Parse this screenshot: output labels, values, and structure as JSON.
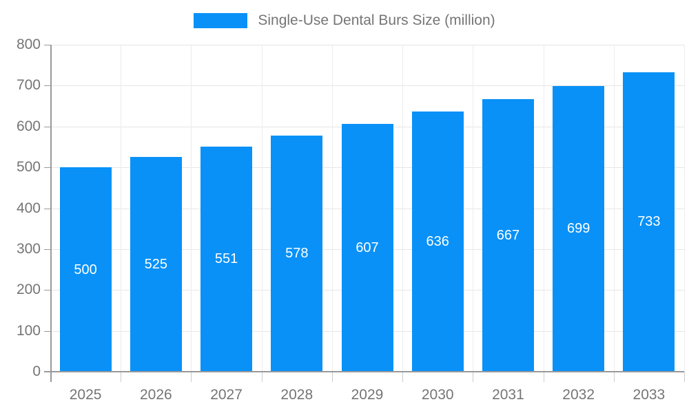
{
  "chart_data": {
    "type": "bar",
    "title": "",
    "legend": "Single-Use Dental Burs Size (million)",
    "legend_position": "top",
    "categories": [
      "2025",
      "2026",
      "2027",
      "2028",
      "2029",
      "2030",
      "2031",
      "2032",
      "2033"
    ],
    "values": [
      500,
      525,
      551,
      578,
      607,
      636,
      667,
      699,
      733
    ],
    "xlabel": "",
    "ylabel": "",
    "ylim": [
      0,
      800
    ],
    "yticks": [
      0,
      100,
      200,
      300,
      400,
      500,
      600,
      700,
      800
    ],
    "grid": true,
    "value_labels_inside_bars": true,
    "colors": {
      "bar": "#0991f7",
      "bar_value_text": "#ffffff",
      "axis_line": "#999999",
      "axis_text": "#757575",
      "h_gridline": "#e6e6e6",
      "v_gridline": "#ececec",
      "background": "#ffffff"
    }
  }
}
